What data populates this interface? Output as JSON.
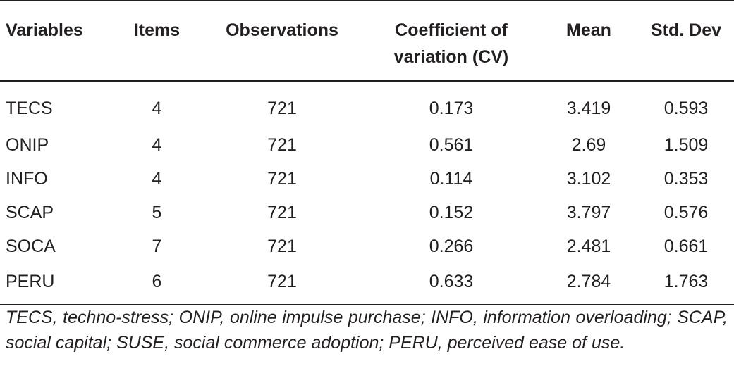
{
  "table": {
    "headers": {
      "variables": "Variables",
      "items": "Items",
      "observations": "Observations",
      "cv_line1": "Coefficient of",
      "cv_line2": "variation (CV)",
      "mean": "Mean",
      "std_dev": "Std. Dev"
    },
    "rows": [
      {
        "variable": "TECS",
        "items": "4",
        "observations": "721",
        "cv": "0.173",
        "mean": "3.419",
        "std_dev": "0.593"
      },
      {
        "variable": "ONIP",
        "items": "4",
        "observations": "721",
        "cv": "0.561",
        "mean": "2.69",
        "std_dev": "1.509"
      },
      {
        "variable": "INFO",
        "items": "4",
        "observations": "721",
        "cv": "0.114",
        "mean": "3.102",
        "std_dev": "0.353"
      },
      {
        "variable": "SCAP",
        "items": "5",
        "observations": "721",
        "cv": "0.152",
        "mean": "3.797",
        "std_dev": "0.576"
      },
      {
        "variable": "SOCA",
        "items": "7",
        "observations": "721",
        "cv": "0.266",
        "mean": "2.481",
        "std_dev": "0.661"
      },
      {
        "variable": "PERU",
        "items": "6",
        "observations": "721",
        "cv": "0.633",
        "mean": "2.784",
        "std_dev": "1.763"
      }
    ]
  },
  "footnote": "TECS, techno-stress; ONIP, online impulse purchase; INFO, information overloading; SCAP, social capital; SUSE, social commerce adoption; PERU, perceived ease of use."
}
